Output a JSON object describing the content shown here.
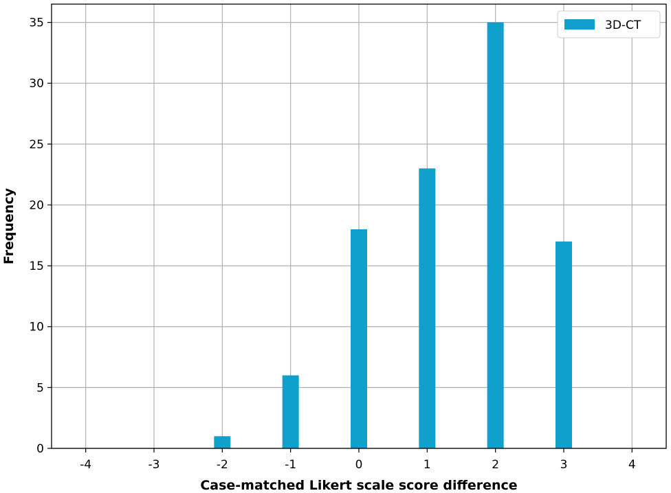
{
  "chart_data": {
    "type": "bar",
    "title": "",
    "xlabel": "Case-matched Likert scale score difference",
    "ylabel": "Frequency",
    "x": [
      -4,
      -3,
      -2,
      -1,
      0,
      1,
      2,
      3,
      4
    ],
    "x_tick_labels": [
      "-4",
      "-3",
      "-2",
      "-1",
      "0",
      "1",
      "2",
      "3",
      "4"
    ],
    "y_ticks": [
      0,
      5,
      10,
      15,
      20,
      25,
      30,
      35
    ],
    "xlim": [
      -4.5,
      4.5
    ],
    "ylim": [
      0,
      36.5
    ],
    "grid": true,
    "legend_position": "top-right",
    "series": [
      {
        "name": "3D-CT",
        "color": "#0fa1cc",
        "values": [
          0,
          0,
          1,
          6,
          18,
          23,
          35,
          17,
          0
        ]
      }
    ]
  }
}
